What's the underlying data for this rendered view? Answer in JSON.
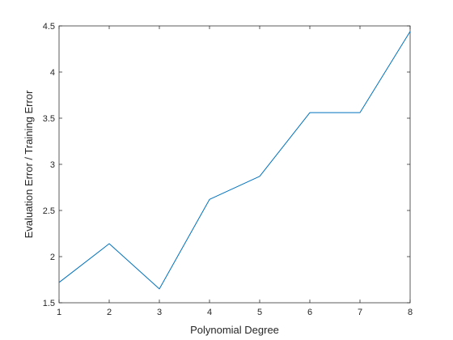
{
  "chart_data": {
    "type": "line",
    "title": "",
    "xlabel": "Polynomial Degree",
    "ylabel": "Evaluation Error / Training Error",
    "xlim": [
      1,
      8
    ],
    "ylim": [
      1.5,
      4.5
    ],
    "xticks": [
      "1",
      "2",
      "3",
      "4",
      "5",
      "6",
      "7",
      "8"
    ],
    "yticks": [
      "1.5",
      "2",
      "2.5",
      "3",
      "3.5",
      "4",
      "4.5"
    ],
    "grid": false,
    "legend": "none",
    "series": [
      {
        "color": "#0072bd",
        "x": [
          1,
          2,
          3,
          4,
          5,
          6,
          7,
          8
        ],
        "y": [
          1.72,
          2.14,
          1.65,
          2.62,
          2.87,
          3.56,
          3.56,
          4.44
        ]
      }
    ]
  }
}
